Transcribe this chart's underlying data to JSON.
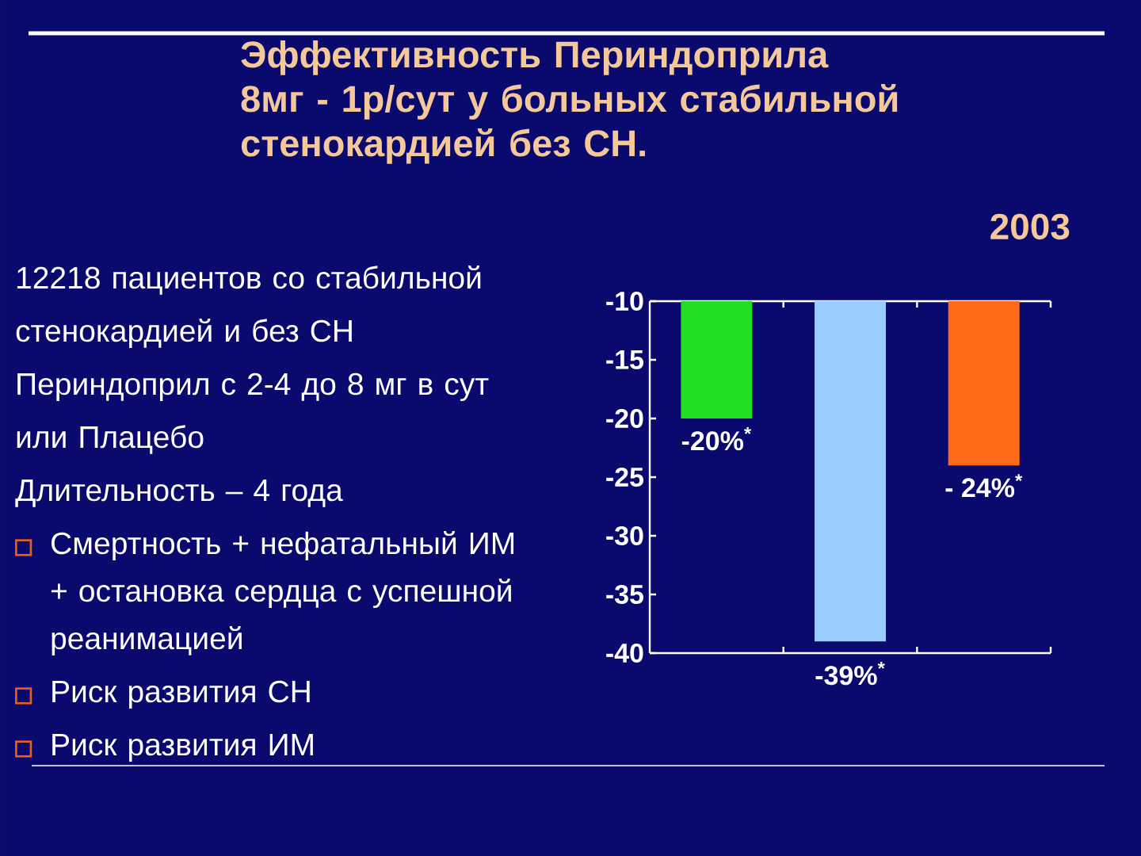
{
  "chart_data": {
    "type": "bar",
    "title": "Эффективность Периндоприла 8мг - 1р/сут у  больных стабильной стенокардией без СН.",
    "subtitle": "2003",
    "annotations": [
      "12218 пациентов со стабильной",
      "стенокардией и без СН",
      "Периндоприл с 2-4 до 8 мг в сут",
      "или Плацебо",
      "Длительность – 4 года",
      "Смертность + нефатальный ИМ + остановка сердца с успешной реанимацией",
      "Риск развития СН",
      "Риск развития ИМ"
    ],
    "categories": [
      null,
      null,
      null
    ],
    "values": [
      -20,
      -39,
      -24
    ],
    "colors": [
      "#22dd22",
      "#99ccff",
      "#ff6a1a"
    ],
    "value_labels": [
      "-20%$^{*}$",
      "-39%$^{*}$",
      "- 24%$^{*}$"
    ],
    "ylim": [
      -40,
      -10
    ],
    "yticks": [
      -40,
      -35,
      -30,
      -25,
      -20,
      -15,
      -10
    ]
  }
}
